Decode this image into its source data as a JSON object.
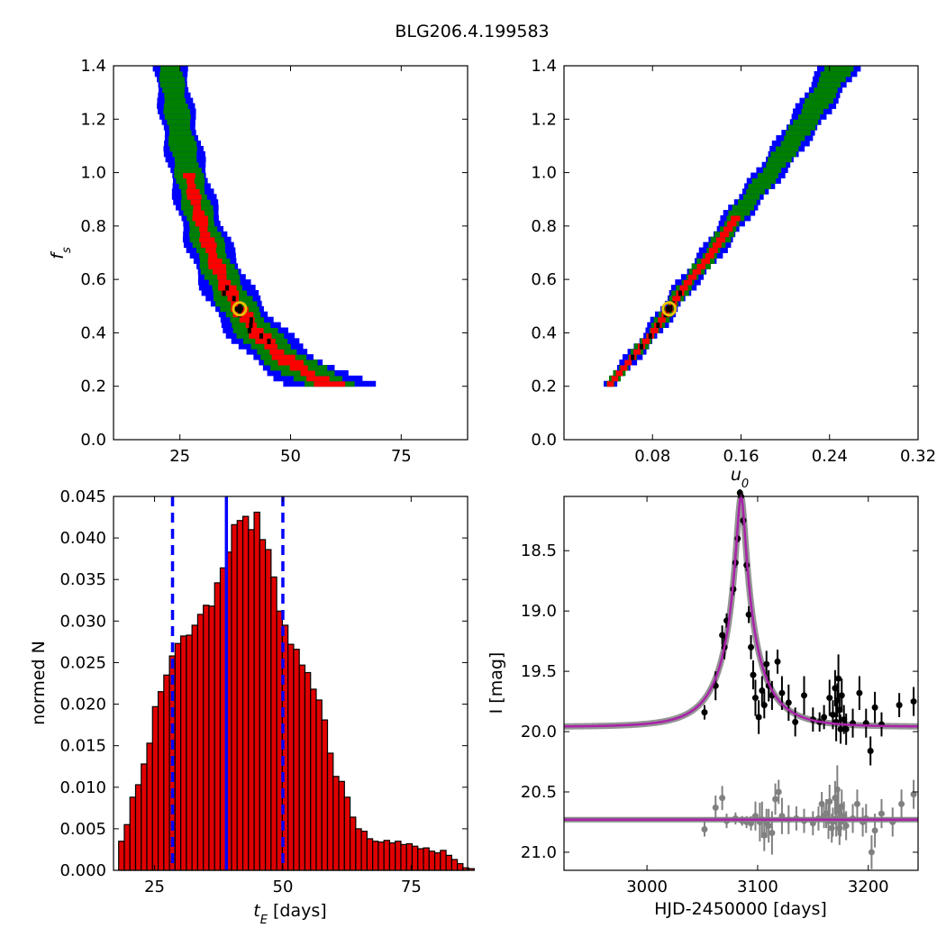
{
  "title": "BLG206.4.199583",
  "colors": {
    "blue": "#0000ff",
    "green": "#007f00",
    "red": "#ff0000",
    "black": "#000000",
    "best_fit_marker": "#e8c000",
    "hist_bar": "#e00000",
    "median_line": "#0000ff",
    "model_curve": "#aa22aa",
    "secondary_points": "#808080"
  },
  "chart_data": [
    {
      "type": "heatmap",
      "panel": "fs_vs_tE",
      "xlabel": "",
      "ylabel": "f_s",
      "xlim": [
        10,
        90
      ],
      "ylim": [
        0.0,
        1.4
      ],
      "xticks": [
        25,
        50,
        75
      ],
      "yticks": [
        0.0,
        0.2,
        0.4,
        0.6,
        0.8,
        1.0,
        1.2,
        1.4
      ],
      "levels": [
        "blue",
        "green",
        "red",
        "black"
      ],
      "ridge_model": "fs * tE^2 approx constant",
      "ridge": {
        "x": [
          20,
          22,
          25,
          28,
          32,
          38,
          45,
          55,
          65,
          75,
          83
        ],
        "y": [
          1.4,
          1.12,
          0.9,
          0.74,
          0.61,
          0.49,
          0.4,
          0.3,
          0.25,
          0.22,
          0.2
        ]
      },
      "best_fit": {
        "x": 38.5,
        "y": 0.49
      }
    },
    {
      "type": "heatmap",
      "panel": "fs_vs_u0",
      "xlabel": "u_0",
      "ylabel": "",
      "xlim": [
        0.0,
        0.32
      ],
      "ylim": [
        0.0,
        1.4
      ],
      "xticks": [
        0.08,
        0.16,
        0.24,
        0.32
      ],
      "yticks": [
        0.0,
        0.2,
        0.4,
        0.6,
        0.8,
        1.0,
        1.2,
        1.4
      ],
      "levels": [
        "blue",
        "green",
        "red",
        "black"
      ],
      "ridge": {
        "x": [
          0.04,
          0.06,
          0.08,
          0.095,
          0.11,
          0.13,
          0.16,
          0.19,
          0.22,
          0.25
        ],
        "y": [
          0.2,
          0.3,
          0.4,
          0.49,
          0.58,
          0.68,
          0.86,
          1.02,
          1.2,
          1.4
        ]
      },
      "best_fit": {
        "x": 0.095,
        "y": 0.49
      }
    },
    {
      "type": "bar",
      "panel": "tE_histogram",
      "xlabel": "t_E [days]",
      "ylabel": "normed N",
      "xlim": [
        17,
        86
      ],
      "ylim": [
        0.0,
        0.045
      ],
      "xticks": [
        25,
        50,
        75
      ],
      "yticks": [
        0.0,
        0.005,
        0.01,
        0.015,
        0.02,
        0.025,
        0.03,
        0.035,
        0.04,
        0.045
      ],
      "bin_start": 18,
      "bin_width": 1.1,
      "values": [
        0.0035,
        0.0055,
        0.0088,
        0.0103,
        0.0128,
        0.0153,
        0.0197,
        0.0215,
        0.0235,
        0.0258,
        0.0273,
        0.0282,
        0.0283,
        0.0295,
        0.0308,
        0.0319,
        0.0318,
        0.0346,
        0.0364,
        0.0383,
        0.0416,
        0.0421,
        0.0426,
        0.041,
        0.0431,
        0.0398,
        0.0386,
        0.0353,
        0.0312,
        0.0295,
        0.0272,
        0.0266,
        0.0247,
        0.0238,
        0.0218,
        0.0205,
        0.0181,
        0.0141,
        0.0113,
        0.0107,
        0.0088,
        0.0064,
        0.005,
        0.0047,
        0.0038,
        0.0035,
        0.0034,
        0.0036,
        0.0033,
        0.0035,
        0.0031,
        0.0032,
        0.0029,
        0.0026,
        0.0027,
        0.0023,
        0.0021,
        0.0024,
        0.0018,
        0.0013,
        0.0008,
        0.0003,
        0.0002
      ],
      "median": 39,
      "interval": [
        28.5,
        50.0
      ]
    },
    {
      "type": "scatter",
      "panel": "light_curve",
      "xlabel": "HJD-2450000 [days]",
      "ylabel": "I [mag]",
      "xlim": [
        2925,
        3245
      ],
      "ylim": [
        21.15,
        18.05
      ],
      "y_inverted": true,
      "xticks": [
        3000,
        3100,
        3200
      ],
      "yticks": [
        18.5,
        19.0,
        19.5,
        20.0,
        20.5,
        21.0
      ],
      "model": {
        "t0": 3085,
        "peak_mag": 18.05,
        "tE": 39,
        "baseline": 19.96
      },
      "residual_baseline": 20.73,
      "series": [
        {
          "role": "photometry",
          "color": "black",
          "points": [
            [
              3052,
              19.84,
              0.06
            ],
            [
              3062,
              19.62,
              0.12
            ],
            [
              3068,
              19.2,
              0.08
            ],
            [
              3070,
              19.3,
              0.1
            ],
            [
              3072,
              19.08,
              0.06
            ],
            [
              3078,
              18.82,
              0.05
            ],
            [
              3080,
              18.6,
              0.04
            ],
            [
              3082,
              18.4,
              0.03
            ],
            [
              3084,
              18.02,
              0.03
            ],
            [
              3085,
              18.05,
              0.03
            ],
            [
              3087,
              18.25,
              0.04
            ],
            [
              3090,
              18.62,
              0.05
            ],
            [
              3092,
              19.03,
              0.07
            ],
            [
              3094,
              19.3,
              0.1
            ],
            [
              3096,
              19.53,
              0.12
            ],
            [
              3098,
              19.72,
              0.15
            ],
            [
              3101,
              19.88,
              0.14
            ],
            [
              3104,
              19.66,
              0.12
            ],
            [
              3106,
              19.78,
              0.11
            ],
            [
              3108,
              19.44,
              0.11
            ],
            [
              3110,
              19.62,
              0.13
            ],
            [
              3113,
              19.7,
              0.12
            ],
            [
              3118,
              19.42,
              0.1
            ],
            [
              3122,
              19.68,
              0.14
            ],
            [
              3128,
              19.76,
              0.15
            ],
            [
              3134,
              19.92,
              0.12
            ],
            [
              3142,
              19.7,
              0.16
            ],
            [
              3150,
              19.9,
              0.1
            ],
            [
              3156,
              19.92,
              0.08
            ],
            [
              3160,
              19.88,
              0.1
            ],
            [
              3165,
              19.72,
              0.15
            ],
            [
              3168,
              19.86,
              0.12
            ],
            [
              3170,
              19.64,
              0.15
            ],
            [
              3171,
              19.92,
              0.16
            ],
            [
              3172,
              19.74,
              0.14
            ],
            [
              3173,
              19.56,
              0.2
            ],
            [
              3174,
              19.82,
              0.1
            ],
            [
              3175,
              19.98,
              0.12
            ],
            [
              3176,
              19.7,
              0.14
            ],
            [
              3178,
              19.9,
              0.12
            ],
            [
              3180,
              19.98,
              0.13
            ],
            [
              3186,
              19.93,
              0.12
            ],
            [
              3192,
              19.68,
              0.14
            ],
            [
              3198,
              19.93,
              0.12
            ],
            [
              3202,
              20.16,
              0.12
            ],
            [
              3206,
              19.8,
              0.13
            ],
            [
              3212,
              19.94,
              0.1
            ],
            [
              3228,
              19.78,
              0.1
            ],
            [
              3241,
              19.75,
              0.12
            ]
          ]
        },
        {
          "role": "residuals",
          "color": "gray",
          "points": [
            [
              3052,
              20.81,
              0.06
            ],
            [
              3062,
              20.63,
              0.1
            ],
            [
              3068,
              20.55,
              0.1
            ],
            [
              3072,
              20.74,
              0.06
            ],
            [
              3080,
              20.72,
              0.05
            ],
            [
              3086,
              20.74,
              0.04
            ],
            [
              3090,
              20.75,
              0.05
            ],
            [
              3094,
              20.76,
              0.06
            ],
            [
              3098,
              20.7,
              0.12
            ],
            [
              3102,
              20.75,
              0.16
            ],
            [
              3104,
              20.73,
              0.15
            ],
            [
              3106,
              20.86,
              0.13
            ],
            [
              3108,
              20.76,
              0.12
            ],
            [
              3110,
              20.78,
              0.14
            ],
            [
              3113,
              20.84,
              0.18
            ],
            [
              3116,
              20.56,
              0.13
            ],
            [
              3119,
              20.5,
              0.1
            ],
            [
              3122,
              20.7,
              0.15
            ],
            [
              3128,
              20.73,
              0.12
            ],
            [
              3135,
              20.72,
              0.1
            ],
            [
              3142,
              20.74,
              0.1
            ],
            [
              3150,
              20.76,
              0.1
            ],
            [
              3155,
              20.72,
              0.1
            ],
            [
              3158,
              20.6,
              0.1
            ],
            [
              3160,
              20.7,
              0.1
            ],
            [
              3162,
              20.68,
              0.12
            ],
            [
              3164,
              20.74,
              0.15
            ],
            [
              3165,
              20.58,
              0.14
            ],
            [
              3167,
              20.8,
              0.12
            ],
            [
              3168,
              20.75,
              0.12
            ],
            [
              3170,
              20.55,
              0.14
            ],
            [
              3171,
              20.72,
              0.15
            ],
            [
              3172,
              20.48,
              0.2
            ],
            [
              3173,
              20.66,
              0.2
            ],
            [
              3174,
              20.8,
              0.14
            ],
            [
              3175,
              20.75,
              0.12
            ],
            [
              3176,
              20.62,
              0.14
            ],
            [
              3178,
              20.7,
              0.12
            ],
            [
              3180,
              20.78,
              0.12
            ],
            [
              3186,
              20.72,
              0.12
            ],
            [
              3190,
              20.6,
              0.12
            ],
            [
              3195,
              20.75,
              0.12
            ],
            [
              3198,
              20.72,
              0.12
            ],
            [
              3203,
              21.0,
              0.14
            ],
            [
              3206,
              20.82,
              0.14
            ],
            [
              3212,
              20.68,
              0.12
            ],
            [
              3222,
              20.75,
              0.12
            ],
            [
              3230,
              20.6,
              0.12
            ],
            [
              3241,
              20.52,
              0.12
            ]
          ]
        }
      ]
    }
  ]
}
